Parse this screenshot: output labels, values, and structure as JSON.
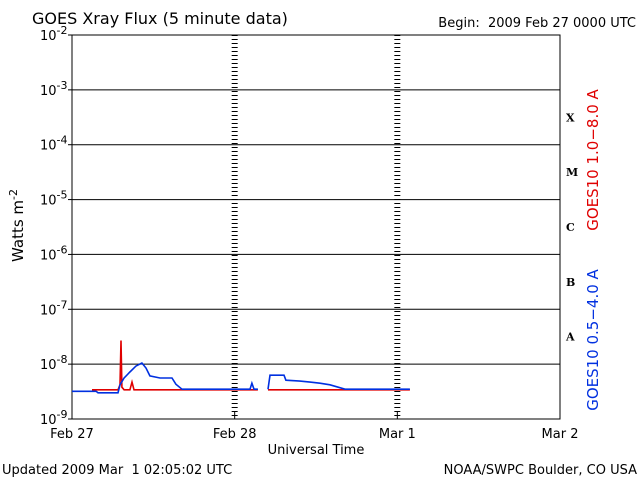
{
  "chart_data": {
    "type": "line",
    "title": "GOES Xray Flux (5 minute data)",
    "subtitle": "Begin:  2009 Feb 27 0000 UTC",
    "x_label": "Universal Time",
    "y_label": "Watts m",
    "y_label_exponent": "-2",
    "footer_left": "Updated 2009 Mar  1 02:05:02 UTC",
    "footer_right": "NOAA/SWPC Boulder, CO USA",
    "ylog": true,
    "grid": true,
    "xlim": [
      0,
      3
    ],
    "xticks": [
      {
        "value": 0,
        "label": "Feb 27"
      },
      {
        "value": 1,
        "label": "Feb 28"
      },
      {
        "value": 2,
        "label": "Mar 1"
      },
      {
        "value": 3,
        "label": "Mar 2"
      }
    ],
    "ylim": [
      1e-09,
      0.01
    ],
    "yticks": [
      {
        "value": 1e-09,
        "label": "10",
        "exponent": "-9"
      },
      {
        "value": 1e-08,
        "label": "10",
        "exponent": "-8"
      },
      {
        "value": 1e-07,
        "label": "10",
        "exponent": "-7"
      },
      {
        "value": 1e-06,
        "label": "10",
        "exponent": "-6"
      },
      {
        "value": 1e-05,
        "label": "10",
        "exponent": "-5"
      },
      {
        "value": 0.0001,
        "label": "10",
        "exponent": "-4"
      },
      {
        "value": 0.001,
        "label": "10",
        "exponent": "-3"
      },
      {
        "value": 0.01,
        "label": "10",
        "exponent": "-2"
      }
    ],
    "class_labels": [
      "A",
      "B",
      "C",
      "M",
      "X"
    ],
    "series": [
      {
        "name": "GOES10 1.0−8.0 A",
        "color": "#e00000",
        "x": [
          0.123,
          0.283,
          0.295,
          0.301,
          0.307,
          0.32,
          0.356,
          0.369,
          0.381,
          1.143,
          1.17,
          1.205,
          2.077
        ],
        "values": [
          3.4e-09,
          3.4e-09,
          4.2e-09,
          2.7e-08,
          3.8e-09,
          3.4e-09,
          3.4e-09,
          4.7e-09,
          3.4e-09,
          3.4e-09,
          null,
          3.4e-09,
          3.4e-09
        ]
      },
      {
        "name": "GOES10 0.5−4.0 A",
        "color": "#0030e0",
        "x": [
          0,
          0.148,
          0.16,
          0.283,
          0.295,
          0.32,
          0.356,
          0.393,
          0.43,
          0.455,
          0.479,
          0.541,
          0.615,
          0.639,
          0.676,
          0.787,
          0.971,
          1.094,
          1.106,
          1.119,
          1.143,
          1.17,
          1.205,
          1.217,
          1.303,
          1.315,
          1.401,
          1.463,
          1.524,
          1.586,
          1.678,
          1.893,
          2.077
        ],
        "values": [
          3.2e-09,
          3.2e-09,
          3e-09,
          3e-09,
          4.2e-09,
          5.6e-09,
          7.2e-09,
          9.2e-09,
          1.05e-08,
          8.5e-09,
          6.1e-09,
          5.6e-09,
          5.6e-09,
          4.3e-09,
          3.5e-09,
          3.5e-09,
          3.5e-09,
          3.5e-09,
          4.5e-09,
          3.5e-09,
          3.5e-09,
          null,
          3.5e-09,
          6.3e-09,
          6.3e-09,
          5.1e-09,
          4.9e-09,
          4.7e-09,
          4.5e-09,
          4.2e-09,
          3.5e-09,
          3.5e-09,
          3.5e-09
        ]
      }
    ]
  }
}
